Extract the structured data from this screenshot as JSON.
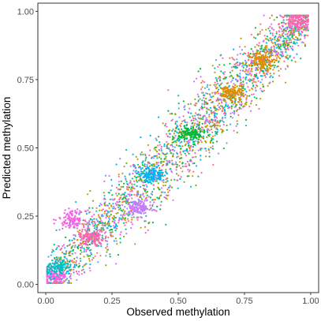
{
  "chart_data": {
    "type": "scatter",
    "title": "",
    "xlabel": "Observed methylation",
    "ylabel": "Predicted methylation",
    "xlim": [
      -0.03,
      1.03
    ],
    "ylim": [
      -0.03,
      1.03
    ],
    "x_ticks": [
      0.0,
      0.25,
      0.5,
      0.75,
      1.0
    ],
    "y_ticks": [
      0.0,
      0.25,
      0.5,
      0.75,
      1.0
    ],
    "x_tick_labels": [
      "0.00",
      "0.25",
      "0.50",
      "0.75",
      "1.00"
    ],
    "y_tick_labels": [
      "0.00",
      "0.25",
      "0.50",
      "0.75",
      "1.00"
    ],
    "grid": false,
    "legend": "none",
    "point_colors": [
      "#F8766D",
      "#DE8C00",
      "#B79F00",
      "#7CAE00",
      "#00BA38",
      "#00C08B",
      "#00BFC4",
      "#00B4F0",
      "#619CFF",
      "#C77CFF",
      "#F564E3",
      "#FF64B0"
    ],
    "series_description": "dense point cloud along the identity line y = x, many colour groups overlapping",
    "clusters": [
      {
        "x": 0.03,
        "y": 0.03,
        "color": "#F564E3"
      },
      {
        "x": 0.05,
        "y": 0.06,
        "color": "#00BFC4"
      },
      {
        "x": 0.17,
        "y": 0.17,
        "color": "#FF64B0"
      },
      {
        "x": 0.1,
        "y": 0.24,
        "color": "#F564E3"
      },
      {
        "x": 0.35,
        "y": 0.28,
        "color": "#C77CFF"
      },
      {
        "x": 0.4,
        "y": 0.4,
        "color": "#00B4F0"
      },
      {
        "x": 0.55,
        "y": 0.55,
        "color": "#00BA38"
      },
      {
        "x": 0.7,
        "y": 0.7,
        "color": "#DE8C00"
      },
      {
        "x": 0.82,
        "y": 0.82,
        "color": "#DE8C00"
      },
      {
        "x": 0.95,
        "y": 0.96,
        "color": "#FF64B0"
      }
    ]
  }
}
